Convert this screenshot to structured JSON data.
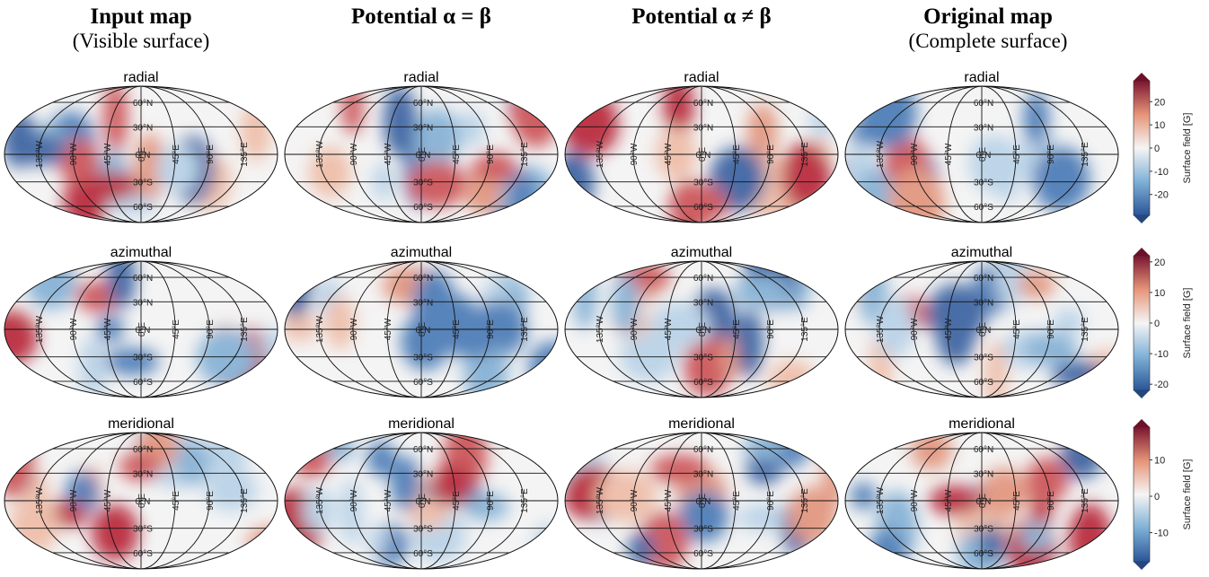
{
  "columns": [
    {
      "title": "Input map",
      "subtitle": "(Visible surface)"
    },
    {
      "title": "Potential α = β"
    },
    {
      "title": "Potential α ≠ β"
    },
    {
      "title": "Original map",
      "subtitle": "(Complete surface)"
    }
  ],
  "rows": [
    {
      "label": "radial",
      "colorbar": {
        "label": "Surface field [G]",
        "lim": [
          -29,
          29
        ],
        "ticks": [
          20,
          10,
          0,
          -10,
          -20
        ]
      }
    },
    {
      "label": "azimuthal",
      "colorbar": {
        "label": "Surface field [G]",
        "lim": [
          -22,
          22
        ],
        "ticks": [
          20,
          10,
          0,
          -10,
          -20
        ]
      }
    },
    {
      "label": "meridional",
      "colorbar": {
        "label": "Surface field [G]",
        "lim": [
          -18,
          19
        ],
        "ticks": [
          10,
          0,
          -10
        ]
      }
    }
  ],
  "latitude_labels": [
    "60°N",
    "30°N",
    "0°N",
    "30°S",
    "60°S"
  ],
  "longitude_labels": [
    "135°W",
    "90°W",
    "45°W",
    "0°E",
    "45°E",
    "90°E",
    "135°E"
  ]
}
